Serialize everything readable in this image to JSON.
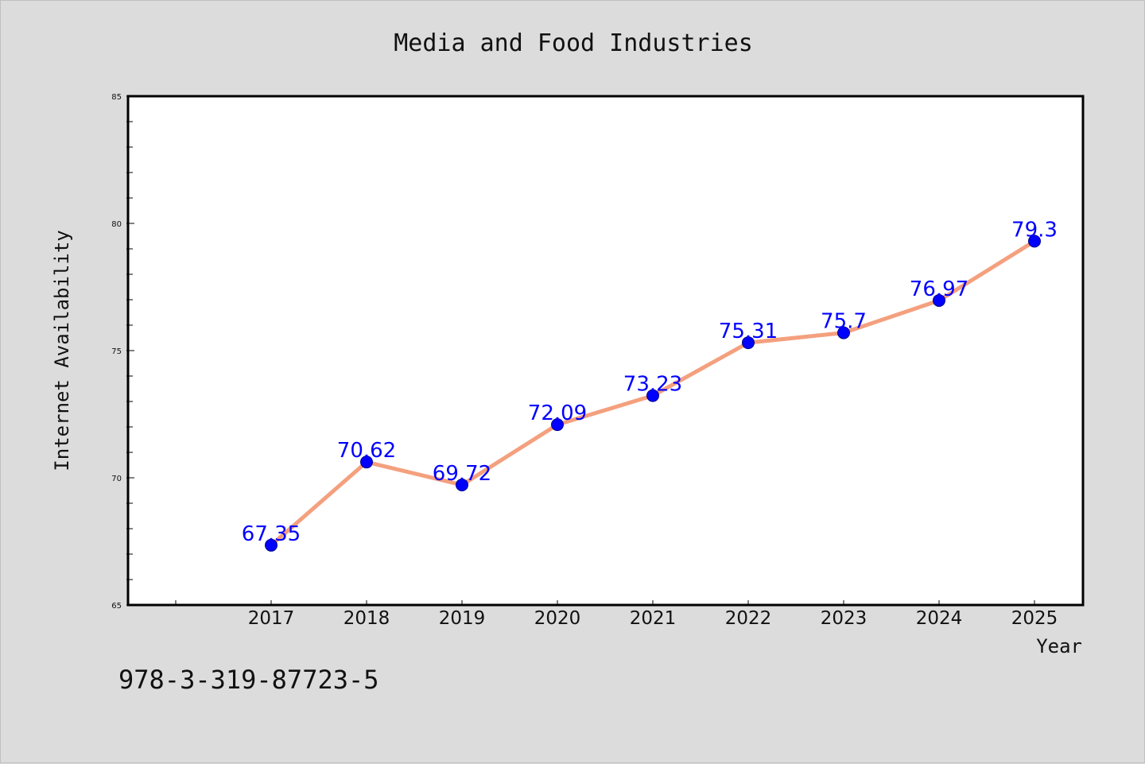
{
  "chart_data": {
    "type": "line",
    "title": "Media and Food Industries",
    "xlabel": "Year",
    "ylabel": "Internet Availability",
    "categories": [
      "2017",
      "2018",
      "2019",
      "2020",
      "2021",
      "2022",
      "2023",
      "2024",
      "2025"
    ],
    "series": [
      {
        "values": [
          67.35,
          70.62,
          69.72,
          72.09,
          73.23,
          75.31,
          75.7,
          76.97,
          79.3
        ],
        "labels": [
          "67.35",
          "70.62",
          "69.72",
          "72.09",
          "73.23",
          "75.31",
          "75.7",
          "76.97",
          "79.3"
        ]
      }
    ],
    "ylim": [
      65,
      85
    ],
    "yticks": [
      "65",
      "70",
      "75",
      "80",
      "85"
    ],
    "grid": false,
    "legend": "none",
    "colors": {
      "line": "#f4a07e",
      "marker": "#0000ff",
      "label": "#0000ff",
      "background": "#dcdcdc",
      "plot": "#ffffff"
    }
  },
  "footer": {
    "isbn": "978-3-319-87723-5"
  }
}
